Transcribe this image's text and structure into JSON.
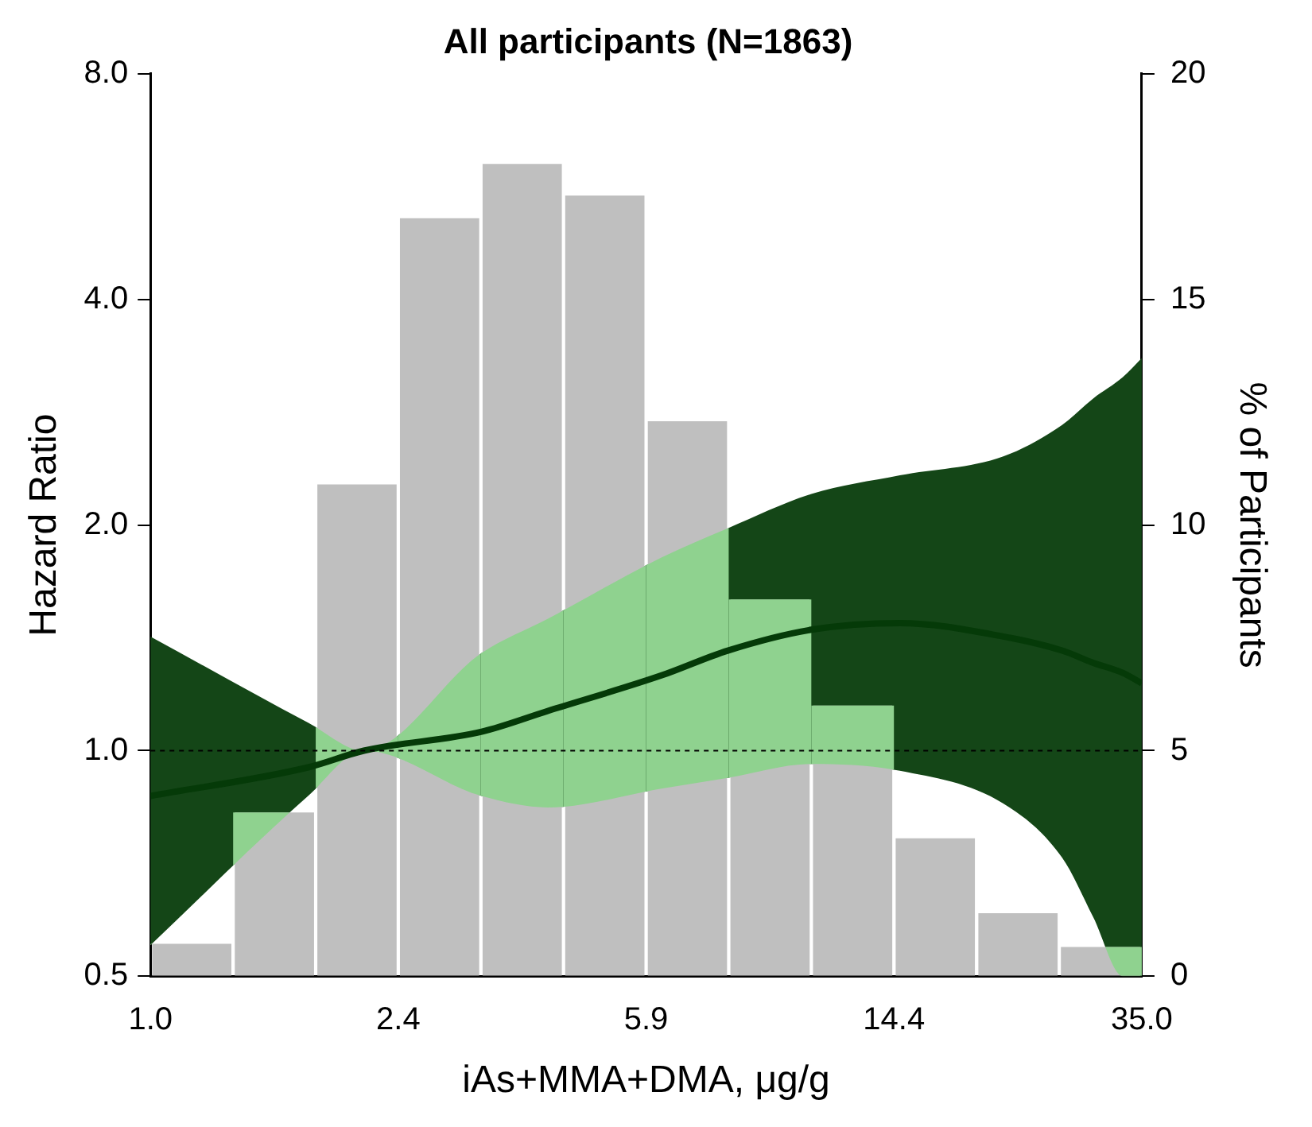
{
  "chart_data": {
    "type": "line",
    "title": "All participants (N=1863)",
    "xlabel": "iAs+MMA+DMA, μg/g",
    "ylabel": "Hazard Ratio",
    "y2label": "% of Participants",
    "log": "xy",
    "marker": "none",
    "xlim": [
      1,
      35
    ],
    "xticks": [
      {
        "value": 1,
        "label": "1.0"
      },
      {
        "value": 2.432,
        "label": "2.4"
      },
      {
        "value": 5.916,
        "label": "5.9"
      },
      {
        "value": 14.39,
        "label": "14.4"
      },
      {
        "value": 35,
        "label": "35.0"
      }
    ],
    "ylim": [
      0.5,
      8
    ],
    "yticks": [
      {
        "value": 0.5,
        "label": "0.5"
      },
      {
        "value": 1,
        "label": "1.0"
      },
      {
        "value": 2,
        "label": "2.0"
      },
      {
        "value": 4,
        "label": "4.0"
      },
      {
        "value": 8,
        "label": "8.0"
      }
    ],
    "y2lim": [
      0,
      20
    ],
    "y2ticks": [
      0,
      5,
      10,
      15,
      20
    ],
    "series": [
      {
        "type": "histogram",
        "axis": "y2",
        "color": "#bfbfbf",
        "bins": [
          1.0,
          1.345,
          1.809,
          2.432,
          3.271,
          4.4,
          5.916,
          7.957,
          10.7,
          14.39,
          19.36,
          26.04,
          35.0
        ],
        "values": [
          0.72,
          3.63,
          10.9,
          16.8,
          18.0,
          17.3,
          12.3,
          8.35,
          6.0,
          3.06,
          1.4,
          0.65
        ]
      },
      {
        "type": "line",
        "color": "#053a08",
        "x": [
          1.0,
          1.76,
          2.15,
          3.28,
          4.16,
          6.25,
          7.93,
          10.7,
          14.7,
          21.3,
          26.3,
          29.4,
          32.7,
          35
        ],
        "values": [
          0.87,
          0.95,
          1.0,
          1.06,
          1.13,
          1.26,
          1.36,
          1.45,
          1.48,
          1.42,
          1.36,
          1.31,
          1.27,
          1.23
        ],
        "lower": [
          0.55,
          0.87,
          1.0,
          0.87,
          0.84,
          0.89,
          0.92,
          0.96,
          0.94,
          0.85,
          0.72,
          0.6,
          0.5,
          0.5
        ],
        "upper": [
          1.42,
          1.09,
          1.0,
          1.35,
          1.5,
          1.81,
          1.98,
          2.2,
          2.33,
          2.47,
          2.72,
          2.95,
          3.15,
          3.34
        ]
      }
    ],
    "ref_lines": [
      {
        "axis": "y",
        "value": 1,
        "line_style": "dashed",
        "color": "#000000"
      }
    ]
  }
}
